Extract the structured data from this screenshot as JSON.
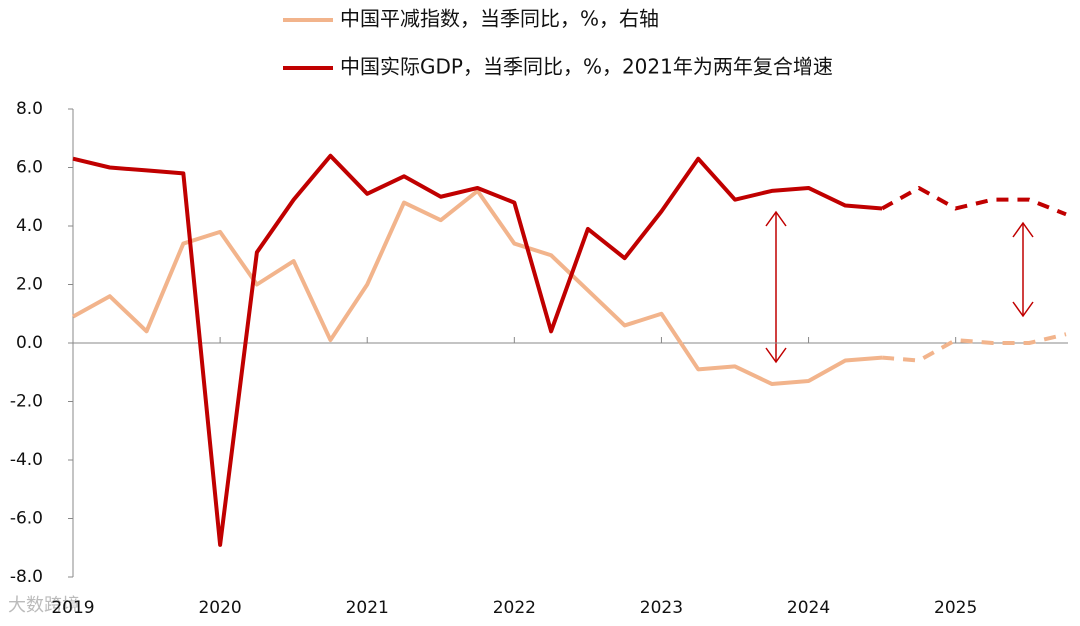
{
  "chart_data": {
    "type": "line",
    "categories": [
      "2019",
      null,
      null,
      null,
      "2020",
      null,
      null,
      null,
      "2021",
      null,
      null,
      null,
      "2022",
      null,
      null,
      null,
      "2023",
      null,
      null,
      null,
      "2024",
      null,
      null,
      null,
      "2025",
      null,
      null,
      null
    ],
    "series": [
      {
        "name": "中国平减指数，当季同比，%，右轴",
        "color": "#f2b48c",
        "dashed_from": 22,
        "values": [
          0.9,
          1.6,
          0.4,
          3.4,
          3.8,
          2.0,
          2.8,
          0.1,
          2.0,
          4.8,
          4.2,
          5.2,
          3.4,
          3.0,
          1.8,
          0.6,
          1.0,
          -0.9,
          -0.8,
          -1.4,
          -1.3,
          -0.6,
          -0.5,
          -0.6,
          0.1,
          0.0,
          0.0,
          0.3
        ]
      },
      {
        "name": "中国实际GDP，当季同比，%，2021年为两年复合增速",
        "color": "#c00000",
        "dashed_from": 22,
        "values": [
          6.3,
          6.0,
          5.9,
          5.8,
          -6.9,
          3.1,
          4.9,
          6.4,
          5.1,
          5.7,
          5.0,
          5.3,
          4.8,
          0.4,
          3.9,
          2.9,
          4.5,
          6.3,
          4.9,
          5.2,
          5.3,
          4.7,
          4.6,
          5.3,
          4.6,
          4.9,
          4.9,
          4.4
        ]
      }
    ],
    "ylim": [
      -8,
      8
    ],
    "yticks": [
      {
        "value": -8,
        "label": "-8.0"
      },
      {
        "value": -6,
        "label": "-6.0"
      },
      {
        "value": -4,
        "label": "-4.0"
      },
      {
        "value": -2,
        "label": "-2.0"
      },
      {
        "value": 0,
        "label": "0.0"
      },
      {
        "value": 2,
        "label": "2.0"
      },
      {
        "value": 4,
        "label": "4.0"
      },
      {
        "value": 6,
        "label": "6.0"
      },
      {
        "value": 8,
        "label": "8.0"
      }
    ],
    "legend": "top",
    "watermark": "大数跨境"
  }
}
